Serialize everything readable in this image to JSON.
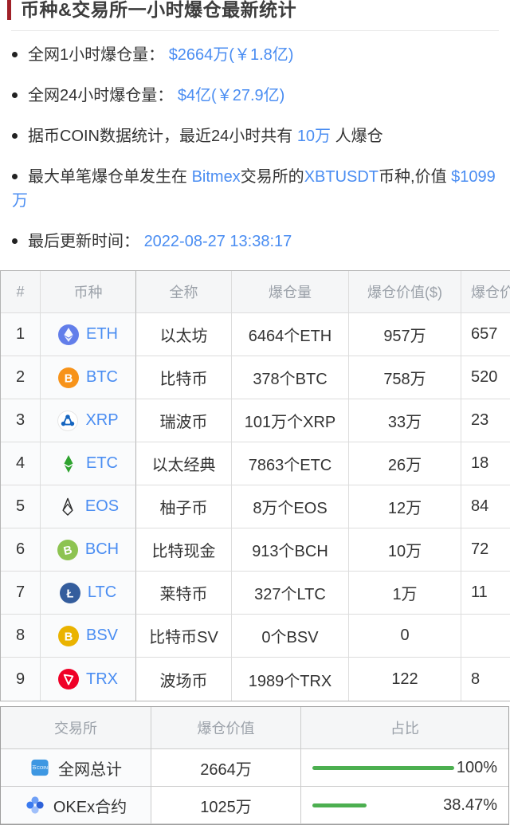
{
  "page": {
    "title": "币种&交易所一小时爆仓最新统计"
  },
  "colors": {
    "accent_red": "#A02128",
    "link_blue": "#4A8DF2",
    "bar_green": "#4CAF50"
  },
  "stats": {
    "s1": {
      "label": "全网1小时爆仓量： ",
      "value": "$2664万(￥1.8亿)"
    },
    "s2": {
      "label": "全网24小时爆仓量： ",
      "value": "$4亿(￥27.9亿)"
    },
    "s3": {
      "pre": "据币COIN数据统计，最近24小时共有 ",
      "value": "10万",
      "post": " 人爆仓"
    },
    "s4": {
      "p1": "最大单笔爆仓单发生在 ",
      "v1": "Bitmex",
      "p2": "交易所的",
      "v2": "XBTUSDT",
      "p3": "币种,价值 ",
      "v3": "$1099万"
    },
    "s5": {
      "label": "最后更新时间： ",
      "value": "2022-08-27 13:38:17"
    }
  },
  "coin_table": {
    "headers": [
      "#",
      "币种",
      "全称",
      "爆仓量",
      "爆仓价值($)",
      "爆仓价值(￥)"
    ],
    "rows": [
      {
        "rank": "1",
        "icon": "eth",
        "symbol": "ETH",
        "name": "以太坊",
        "amount": "6464个ETH",
        "value_usd": "957万",
        "value_cny": "657"
      },
      {
        "rank": "2",
        "icon": "btc",
        "symbol": "BTC",
        "name": "比特币",
        "amount": "378个BTC",
        "value_usd": "758万",
        "value_cny": "520"
      },
      {
        "rank": "3",
        "icon": "xrp",
        "symbol": "XRP",
        "name": "瑞波币",
        "amount": "101万个XRP",
        "value_usd": "33万",
        "value_cny": "23"
      },
      {
        "rank": "4",
        "icon": "etc",
        "symbol": "ETC",
        "name": "以太经典",
        "amount": "7863个ETC",
        "value_usd": "26万",
        "value_cny": "18"
      },
      {
        "rank": "5",
        "icon": "eos",
        "symbol": "EOS",
        "name": "柚子币",
        "amount": "8万个EOS",
        "value_usd": "12万",
        "value_cny": "84"
      },
      {
        "rank": "6",
        "icon": "bch",
        "symbol": "BCH",
        "name": "比特现金",
        "amount": "913个BCH",
        "value_usd": "10万",
        "value_cny": "72"
      },
      {
        "rank": "7",
        "icon": "ltc",
        "symbol": "LTC",
        "name": "莱特币",
        "amount": "327个LTC",
        "value_usd": "1万",
        "value_cny": "11"
      },
      {
        "rank": "8",
        "icon": "bsv",
        "symbol": "BSV",
        "name": "比特币SV",
        "amount": "0个BSV",
        "value_usd": "0",
        "value_cny": ""
      },
      {
        "rank": "9",
        "icon": "trx",
        "symbol": "TRX",
        "name": "波场币",
        "amount": "1989个TRX",
        "value_usd": "122",
        "value_cny": "8"
      }
    ]
  },
  "exchange_table": {
    "headers": [
      "交易所",
      "爆仓价值",
      "占比"
    ],
    "rows": [
      {
        "icon": "bicoin",
        "name": "全网总计",
        "value": "2664万",
        "percent": "100%",
        "percent_value": 100
      },
      {
        "icon": "okex",
        "name": "OKEx合约",
        "value": "1025万",
        "percent": "38.47%",
        "percent_value": 38.47
      }
    ]
  }
}
